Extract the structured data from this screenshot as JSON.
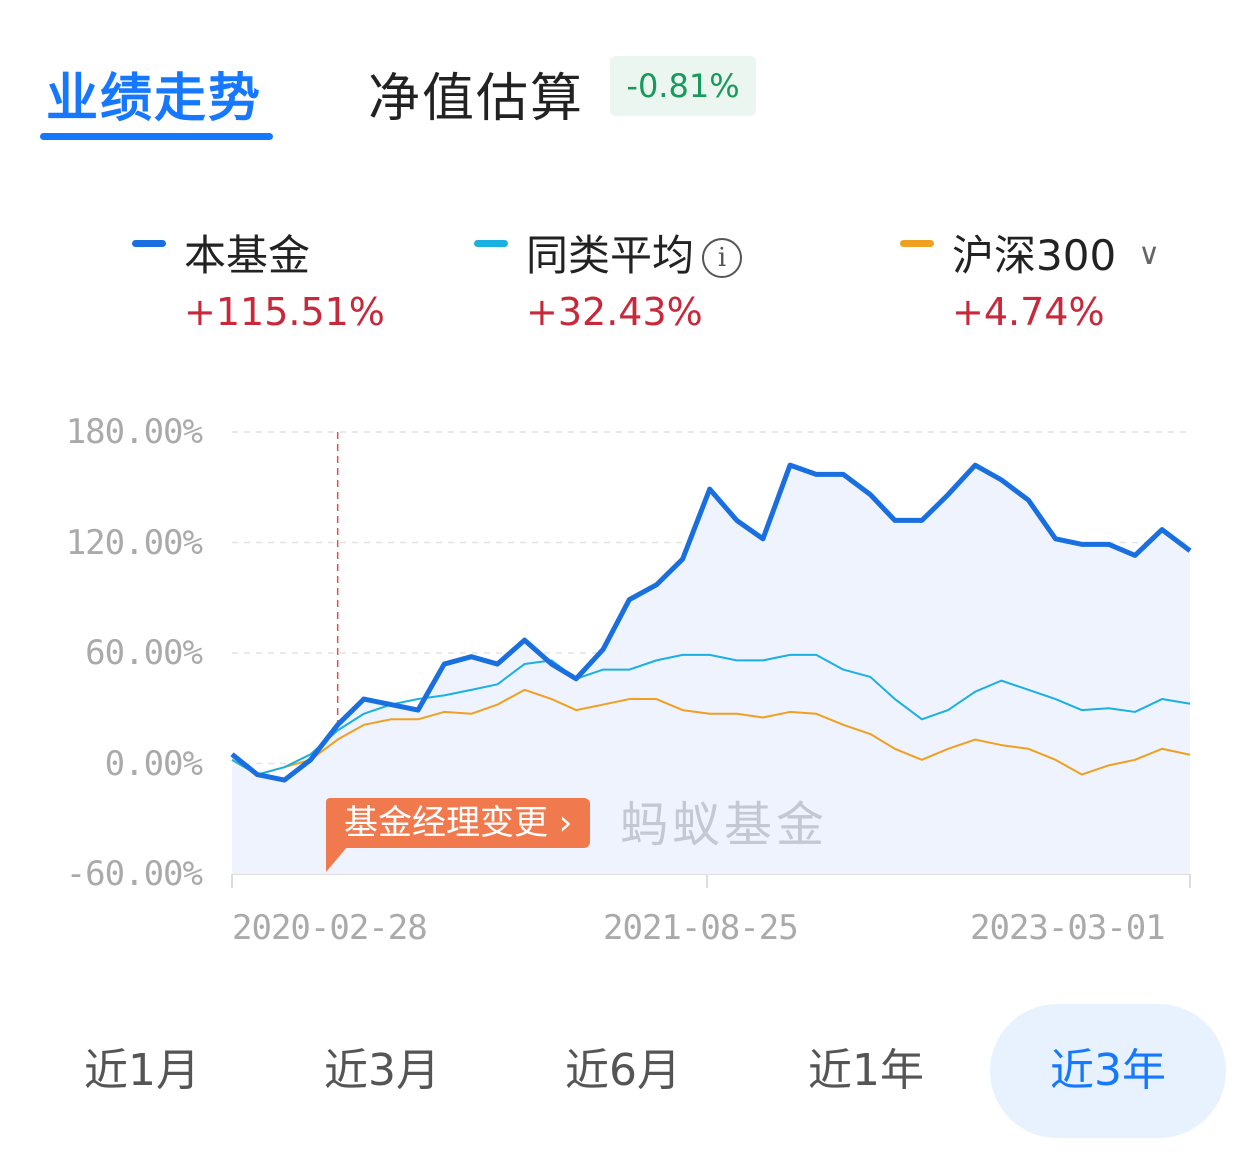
{
  "tabs": [
    {
      "label": "业绩走势",
      "active": true
    },
    {
      "label": "净值估算",
      "active": false
    }
  ],
  "estimate_badge": "-0.81%",
  "colors": {
    "accent": "#1677ff",
    "fund": "#1a6fe0",
    "category": "#1ab0e0",
    "index": "#f0a020",
    "positive": "#c8283a",
    "negative_badge": "#159a5c",
    "annotation": "#f07a4e"
  },
  "legend": [
    {
      "name": "本基金",
      "value": "+115.51%"
    },
    {
      "name": "同类平均",
      "value": "+32.43%",
      "icon": "info-icon",
      "icon_glyph": "i"
    },
    {
      "name": "沪深300",
      "value": "+4.74%",
      "icon": "chevron-down-icon",
      "icon_glyph": "∨"
    }
  ],
  "watermark": "蚂蚁基金",
  "annotation": {
    "label": "基金经理变更 ›",
    "date": "2020-06-28"
  },
  "chart_data": {
    "type": "line",
    "ylim": [
      -60,
      180
    ],
    "yticks": [
      "180.00%",
      "120.00%",
      "60.00%",
      "0.00%",
      "-60.00%"
    ],
    "ytick_values": [
      180,
      120,
      60,
      0,
      -60
    ],
    "xticks": [
      "2020-02-28",
      "2021-08-25",
      "2023-03-01"
    ],
    "xlim": [
      "2020-02-28",
      "2023-03-01"
    ],
    "grid": true,
    "legend_placement": "top",
    "x": [
      "2020-02-28",
      "2020-03-28",
      "2020-04-28",
      "2020-05-28",
      "2020-06-28",
      "2020-07-28",
      "2020-08-28",
      "2020-09-28",
      "2020-10-28",
      "2020-11-28",
      "2020-12-28",
      "2021-01-28",
      "2021-02-28",
      "2021-03-28",
      "2021-04-28",
      "2021-05-28",
      "2021-06-28",
      "2021-07-28",
      "2021-08-28",
      "2021-09-28",
      "2021-10-28",
      "2021-11-28",
      "2021-12-28",
      "2022-01-28",
      "2022-02-28",
      "2022-03-28",
      "2022-04-28",
      "2022-05-28",
      "2022-06-28",
      "2022-07-28",
      "2022-08-28",
      "2022-09-28",
      "2022-10-28",
      "2022-11-28",
      "2022-12-28",
      "2023-01-28",
      "2023-03-01"
    ],
    "series": [
      {
        "name": "本基金",
        "values": [
          5,
          -6,
          -9,
          2,
          21,
          35,
          32,
          29,
          54,
          58,
          54,
          67,
          54,
          46,
          62,
          89,
          97,
          111,
          149,
          132,
          122,
          162,
          157,
          157,
          146,
          132,
          132,
          146,
          162,
          154,
          143,
          122,
          119,
          119,
          113,
          127,
          115.51
        ]
      },
      {
        "name": "同类平均",
        "values": [
          2,
          -6,
          -2,
          5,
          18,
          27,
          32,
          35,
          37,
          40,
          43,
          54,
          56,
          46,
          51,
          51,
          56,
          59,
          59,
          56,
          56,
          59,
          59,
          51,
          47,
          35,
          24,
          29,
          39,
          45,
          40,
          35,
          29,
          30,
          28,
          35,
          32.43
        ]
      },
      {
        "name": "沪深300",
        "values": [
          2,
          -6,
          -2,
          2,
          13,
          21,
          24,
          24,
          28,
          27,
          32,
          40,
          35,
          29,
          32,
          35,
          35,
          29,
          27,
          27,
          25,
          28,
          27,
          21,
          16,
          8,
          2,
          8,
          13,
          10,
          8,
          2,
          -6,
          -1,
          2,
          8,
          4.74
        ]
      }
    ]
  },
  "periods": [
    {
      "label": "近1月"
    },
    {
      "label": "近3月"
    },
    {
      "label": "近6月"
    },
    {
      "label": "近1年"
    },
    {
      "label": "近3年",
      "active": true
    }
  ]
}
